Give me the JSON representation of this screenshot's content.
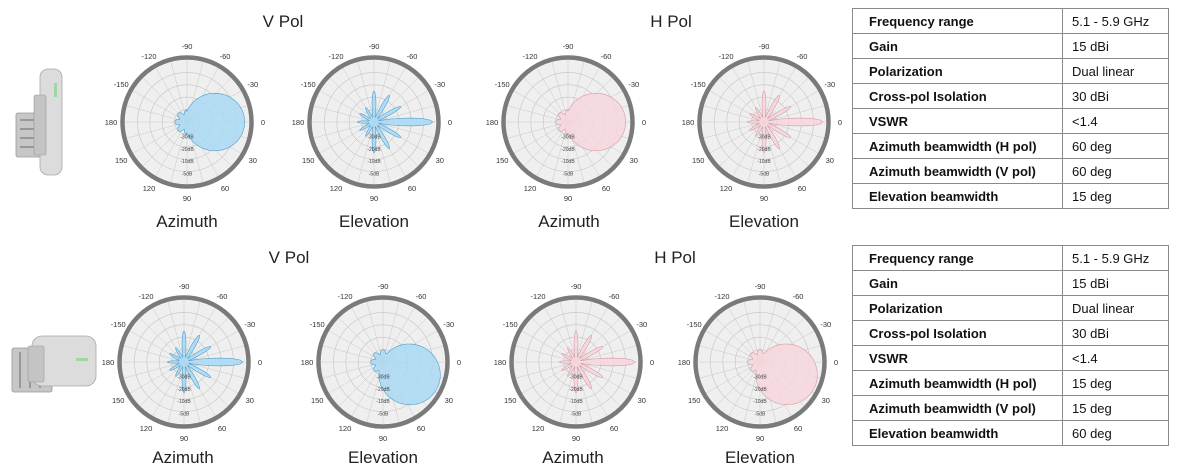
{
  "sections": [
    {
      "id": "top",
      "device": "device-vertical-icon",
      "groups": [
        {
          "title": "V Pol",
          "color": "#a9d8f2",
          "stroke": "#4d9fd0",
          "plots": [
            {
              "title": "Azimuth",
              "shape": "wide-0"
            },
            {
              "title": "Elevation",
              "shape": "narrow-0"
            }
          ]
        },
        {
          "title": "H Pol",
          "color": "#f6d7dc",
          "stroke": "#d79aa6",
          "plots": [
            {
              "title": "Azimuth",
              "shape": "wide-0"
            },
            {
              "title": "Elevation",
              "shape": "narrow-0"
            }
          ]
        }
      ],
      "specs": [
        {
          "label": "Frequency range",
          "value": "5.1 - 5.9 GHz"
        },
        {
          "label": "Gain",
          "value": "15 dBi"
        },
        {
          "label": "Polarization",
          "value": "Dual linear"
        },
        {
          "label": "Cross-pol Isolation",
          "value": "30 dBi"
        },
        {
          "label": "VSWR",
          "value": "<1.4"
        },
        {
          "label": "Azimuth beamwidth (H pol)",
          "value": "60 deg"
        },
        {
          "label": "Azimuth beamwidth (V pol)",
          "value": "60 deg"
        },
        {
          "label": "Elevation beamwidth",
          "value": "15 deg"
        }
      ]
    },
    {
      "id": "bottom",
      "device": "device-horizontal-icon",
      "groups": [
        {
          "title": "V Pol",
          "color": "#a9d8f2",
          "stroke": "#4d9fd0",
          "plots": [
            {
              "title": "Azimuth",
              "shape": "narrow-0"
            },
            {
              "title": "Elevation",
              "shape": "wide-30"
            }
          ]
        },
        {
          "title": "H Pol",
          "color": "#f6d7dc",
          "stroke": "#d79aa6",
          "plots": [
            {
              "title": "Azimuth",
              "shape": "narrow-0"
            },
            {
              "title": "Elevation",
              "shape": "wide-30"
            }
          ]
        }
      ],
      "specs": [
        {
          "label": "Frequency range",
          "value": "5.1 - 5.9 GHz"
        },
        {
          "label": "Gain",
          "value": "15 dBi"
        },
        {
          "label": "Polarization",
          "value": "Dual linear"
        },
        {
          "label": "Cross-pol Isolation",
          "value": "30 dBi"
        },
        {
          "label": "VSWR",
          "value": "<1.4"
        },
        {
          "label": "Azimuth beamwidth (H pol)",
          "value": "15 deg"
        },
        {
          "label": "Azimuth beamwidth (V pol)",
          "value": "15 deg"
        },
        {
          "label": "Elevation beamwidth",
          "value": "60 deg"
        }
      ]
    }
  ],
  "polar_axis": {
    "angle_labels": [
      "-90",
      "-60",
      "-30",
      "0",
      "30",
      "60",
      "90",
      "120",
      "150",
      "180",
      "-150",
      "-120"
    ],
    "ring_labels": [
      "-30dB",
      "-20dB",
      "-10dB",
      "-5dB"
    ]
  }
}
